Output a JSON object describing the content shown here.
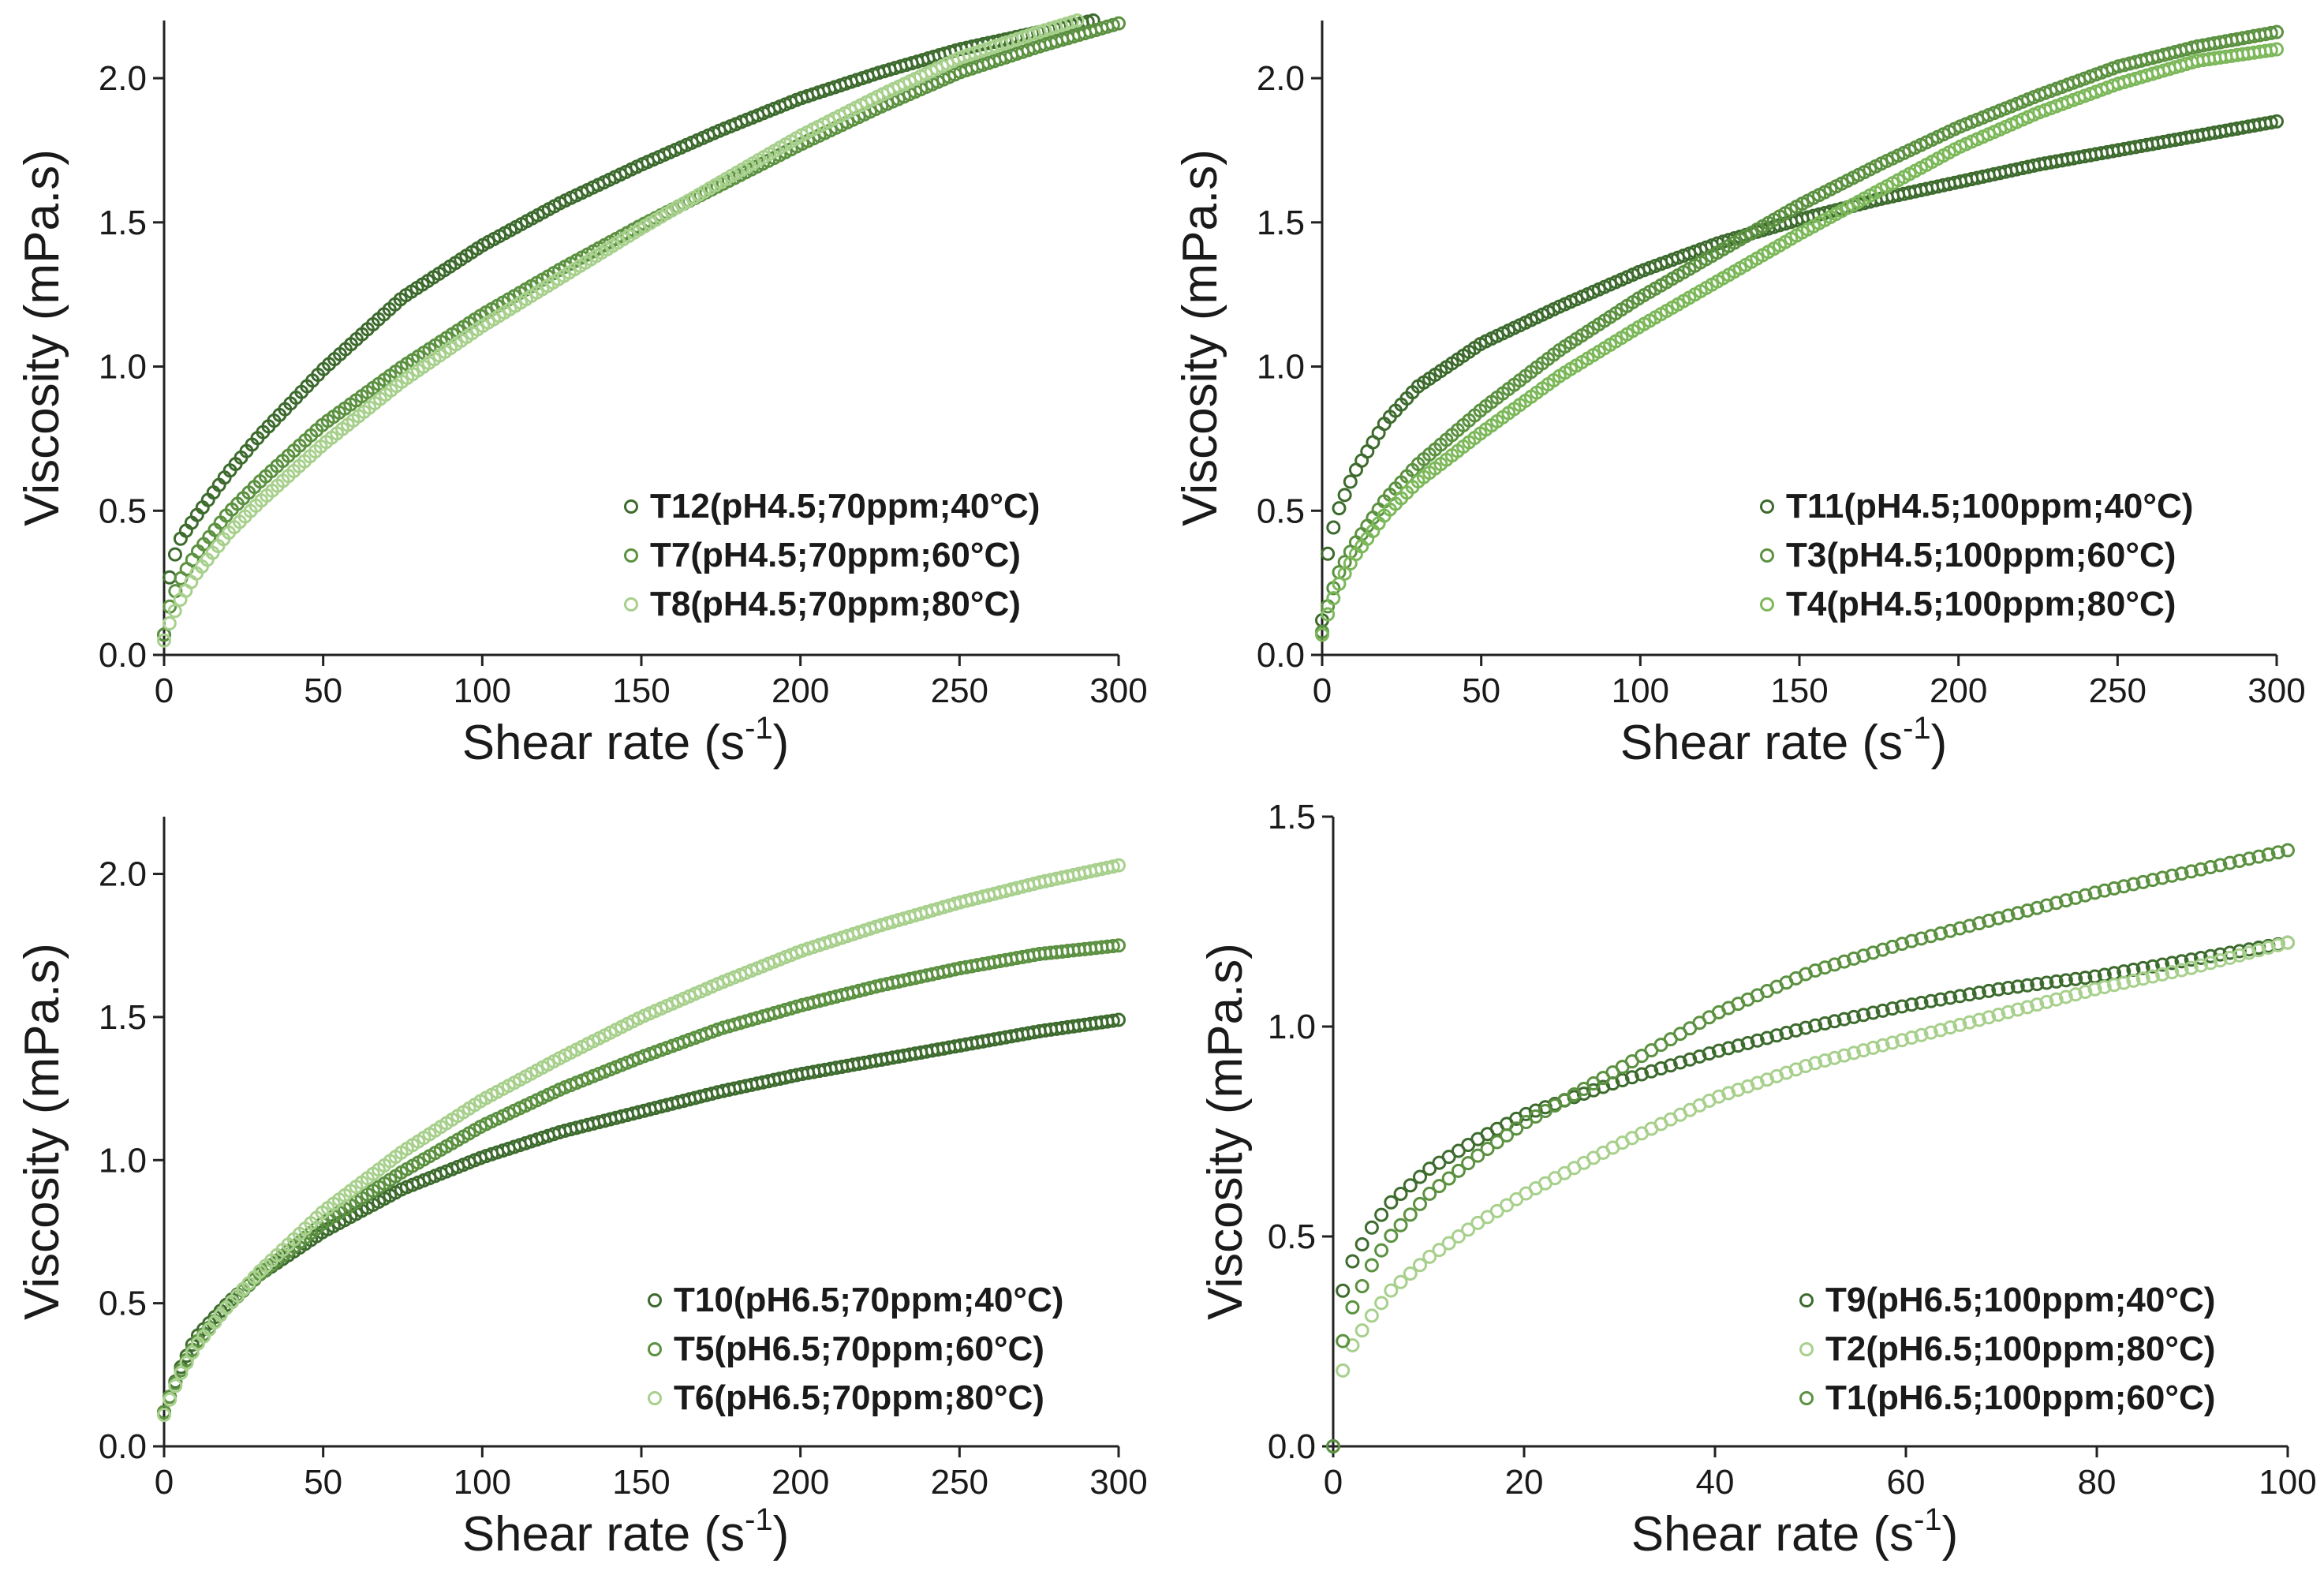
{
  "chart_data": [
    {
      "type": "scatter",
      "xlabel": "Shear rate (s",
      "xlabel_sup": "-1",
      "xlabel_close": ")",
      "ylabel": "Viscosity (mPa.s)",
      "xlim": [
        0,
        300
      ],
      "ylim": [
        0,
        2.2
      ],
      "xticks": [
        "0",
        "50",
        "100",
        "150",
        "200",
        "250",
        "300"
      ],
      "yticks": [
        "0.0",
        "0.5",
        "1.0",
        "1.5",
        "2.0"
      ],
      "legend_position": "bottom-right",
      "grid": false,
      "series": [
        {
          "name": "T12(pH4.5;70ppm;40°C)",
          "color": "#3d6b2e",
          "x_max": 292,
          "y_max": 2.2,
          "points": 170,
          "x": [
            0,
            2,
            5,
            10,
            20,
            30,
            50,
            75,
            100,
            125,
            150,
            175,
            200,
            225,
            250,
            275,
            292
          ],
          "y": [
            0.07,
            0.3,
            0.4,
            0.48,
            0.63,
            0.76,
            0.99,
            1.24,
            1.42,
            1.57,
            1.7,
            1.82,
            1.93,
            2.02,
            2.1,
            2.16,
            2.2
          ]
        },
        {
          "name": "T7(pH4.5;70ppm;60°C)",
          "color": "#5b9140",
          "x_max": 300,
          "y_max": 2.19,
          "points": 170,
          "x": [
            0,
            2,
            5,
            10,
            20,
            30,
            50,
            75,
            100,
            125,
            150,
            175,
            200,
            225,
            250,
            275,
            300
          ],
          "y": [
            0.07,
            0.18,
            0.26,
            0.35,
            0.49,
            0.6,
            0.8,
            1.0,
            1.18,
            1.34,
            1.49,
            1.63,
            1.77,
            1.9,
            2.02,
            2.11,
            2.19
          ]
        },
        {
          "name": "T8(pH4.5;70ppm;80°C)",
          "color": "#a8d08d",
          "x_max": 287,
          "y_max": 2.2,
          "points": 170,
          "x": [
            0,
            2,
            5,
            10,
            20,
            30,
            50,
            75,
            100,
            125,
            150,
            175,
            200,
            225,
            250,
            275,
            287
          ],
          "y": [
            0.05,
            0.12,
            0.19,
            0.28,
            0.42,
            0.53,
            0.73,
            0.95,
            1.14,
            1.31,
            1.48,
            1.64,
            1.8,
            1.94,
            2.07,
            2.16,
            2.2
          ]
        }
      ]
    },
    {
      "type": "scatter",
      "xlabel": "Shear rate  (s",
      "xlabel_sup": "-1",
      "xlabel_close": ")",
      "ylabel": "Viscosity (mPa.s)",
      "xlim": [
        0,
        300
      ],
      "ylim": [
        0,
        2.2
      ],
      "xticks": [
        "0",
        "50",
        "100",
        "150",
        "200",
        "250",
        "300"
      ],
      "yticks": [
        "0.0",
        "0.5",
        "1.0",
        "1.5",
        "2.0"
      ],
      "legend_position": "bottom-right",
      "grid": false,
      "series": [
        {
          "name": "T11(pH4.5;100ppm;40°C)",
          "color": "#3d6b2e",
          "x_max": 300,
          "y_max": 1.85,
          "points": 170,
          "x": [
            0,
            2,
            5,
            10,
            20,
            30,
            50,
            75,
            100,
            125,
            150,
            175,
            200,
            225,
            250,
            275,
            300
          ],
          "y": [
            0.12,
            0.38,
            0.5,
            0.63,
            0.81,
            0.93,
            1.08,
            1.21,
            1.33,
            1.43,
            1.51,
            1.58,
            1.64,
            1.7,
            1.75,
            1.8,
            1.85
          ]
        },
        {
          "name": "T3(pH4.5;100ppm;60°C)",
          "color": "#5b9140",
          "x_max": 300,
          "y_max": 2.16,
          "points": 170,
          "x": [
            0,
            2,
            5,
            10,
            20,
            30,
            50,
            75,
            100,
            125,
            150,
            175,
            200,
            225,
            250,
            275,
            300
          ],
          "y": [
            0.08,
            0.18,
            0.28,
            0.38,
            0.54,
            0.66,
            0.85,
            1.06,
            1.24,
            1.4,
            1.56,
            1.7,
            1.83,
            1.94,
            2.04,
            2.11,
            2.16
          ]
        },
        {
          "name": "T4(pH4.5;100ppm;80°C)",
          "color": "#7cb85a",
          "x_max": 300,
          "y_max": 2.1,
          "points": 170,
          "x": [
            0,
            2,
            5,
            10,
            20,
            30,
            50,
            75,
            100,
            125,
            150,
            175,
            200,
            225,
            250,
            275,
            300
          ],
          "y": [
            0.07,
            0.15,
            0.24,
            0.34,
            0.49,
            0.6,
            0.77,
            0.97,
            1.14,
            1.3,
            1.46,
            1.61,
            1.76,
            1.88,
            1.98,
            2.06,
            2.1
          ]
        }
      ]
    },
    {
      "type": "scatter",
      "xlabel": "Shear rate (s",
      "xlabel_sup": "-1",
      "xlabel_close": ")",
      "ylabel": "Viscosity (mPa.s)",
      "xlim": [
        0,
        300
      ],
      "ylim": [
        0,
        2.2
      ],
      "xticks": [
        "0",
        "50",
        "100",
        "150",
        "200",
        "250",
        "300"
      ],
      "yticks": [
        "0.0",
        "0.5",
        "1.0",
        "1.5",
        "2.0"
      ],
      "legend_position": "bottom-right",
      "grid": false,
      "series": [
        {
          "name": "T10(pH6.5;70ppm;40°C)",
          "color": "#3d6b2e",
          "x_max": 300,
          "y_max": 1.49,
          "points": 170,
          "x": [
            0,
            2,
            5,
            10,
            20,
            30,
            50,
            75,
            100,
            125,
            150,
            175,
            200,
            225,
            250,
            275,
            300
          ],
          "y": [
            0.12,
            0.18,
            0.27,
            0.38,
            0.5,
            0.6,
            0.75,
            0.9,
            1.01,
            1.1,
            1.17,
            1.24,
            1.3,
            1.35,
            1.4,
            1.45,
            1.49
          ]
        },
        {
          "name": "T5(pH6.5;70ppm;60°C)",
          "color": "#5b9140",
          "x_max": 300,
          "y_max": 1.75,
          "points": 170,
          "x": [
            0,
            2,
            5,
            10,
            20,
            30,
            50,
            75,
            100,
            125,
            150,
            175,
            200,
            225,
            250,
            275,
            300
          ],
          "y": [
            0.12,
            0.18,
            0.26,
            0.36,
            0.49,
            0.6,
            0.78,
            0.96,
            1.12,
            1.25,
            1.36,
            1.46,
            1.54,
            1.61,
            1.67,
            1.72,
            1.75
          ]
        },
        {
          "name": "T6(pH6.5;70ppm;80°C)",
          "color": "#a8d08d",
          "x_max": 300,
          "y_max": 2.03,
          "points": 170,
          "x": [
            0,
            2,
            5,
            10,
            20,
            30,
            50,
            75,
            100,
            125,
            150,
            175,
            200,
            225,
            250,
            275,
            300
          ],
          "y": [
            0.11,
            0.17,
            0.25,
            0.35,
            0.49,
            0.61,
            0.82,
            1.03,
            1.21,
            1.36,
            1.5,
            1.62,
            1.73,
            1.82,
            1.9,
            1.97,
            2.03
          ]
        }
      ]
    },
    {
      "type": "scatter",
      "xlabel": "Shear rate (s",
      "xlabel_sup": "-1",
      "xlabel_close": ")",
      "ylabel": "Viscosity (mPa.s)",
      "xlim": [
        0,
        100
      ],
      "ylim": [
        0,
        1.5
      ],
      "xticks": [
        "0",
        "20",
        "40",
        "60",
        "80",
        "100"
      ],
      "yticks": [
        "0.0",
        "0.5",
        "1.0",
        "1.5"
      ],
      "legend_position": "bottom-right",
      "grid": false,
      "series": [
        {
          "name": "T9(pH6.5;100ppm;40°C)",
          "color": "#3d6b2e",
          "x_max": 100,
          "y_max": 1.2,
          "points": 100,
          "x": [
            0,
            1,
            2,
            4,
            6,
            10,
            15,
            20,
            30,
            40,
            50,
            60,
            70,
            80,
            90,
            100
          ],
          "y": [
            0.0,
            0.37,
            0.44,
            0.52,
            0.58,
            0.66,
            0.73,
            0.79,
            0.87,
            0.94,
            1.0,
            1.05,
            1.09,
            1.12,
            1.16,
            1.2
          ]
        },
        {
          "name": "T2(pH6.5;100ppm;80°C)",
          "color": "#a8d08d",
          "x_max": 100,
          "y_max": 1.2,
          "points": 100,
          "x": [
            0,
            1,
            2,
            4,
            6,
            10,
            15,
            20,
            30,
            40,
            50,
            60,
            70,
            80,
            90,
            100
          ],
          "y": [
            0.0,
            0.18,
            0.24,
            0.31,
            0.37,
            0.45,
            0.53,
            0.6,
            0.72,
            0.83,
            0.91,
            0.97,
            1.03,
            1.09,
            1.14,
            1.2
          ]
        },
        {
          "name": "T1(pH6.5;100ppm;60°C)",
          "color": "#5b9140",
          "x_max": 100,
          "y_max": 1.42,
          "points": 100,
          "x": [
            0,
            1,
            2,
            4,
            6,
            10,
            15,
            20,
            30,
            40,
            50,
            60,
            70,
            80,
            90,
            100
          ],
          "y": [
            0.0,
            0.25,
            0.33,
            0.43,
            0.5,
            0.6,
            0.69,
            0.77,
            0.9,
            1.03,
            1.13,
            1.2,
            1.26,
            1.32,
            1.37,
            1.42
          ]
        }
      ]
    }
  ]
}
